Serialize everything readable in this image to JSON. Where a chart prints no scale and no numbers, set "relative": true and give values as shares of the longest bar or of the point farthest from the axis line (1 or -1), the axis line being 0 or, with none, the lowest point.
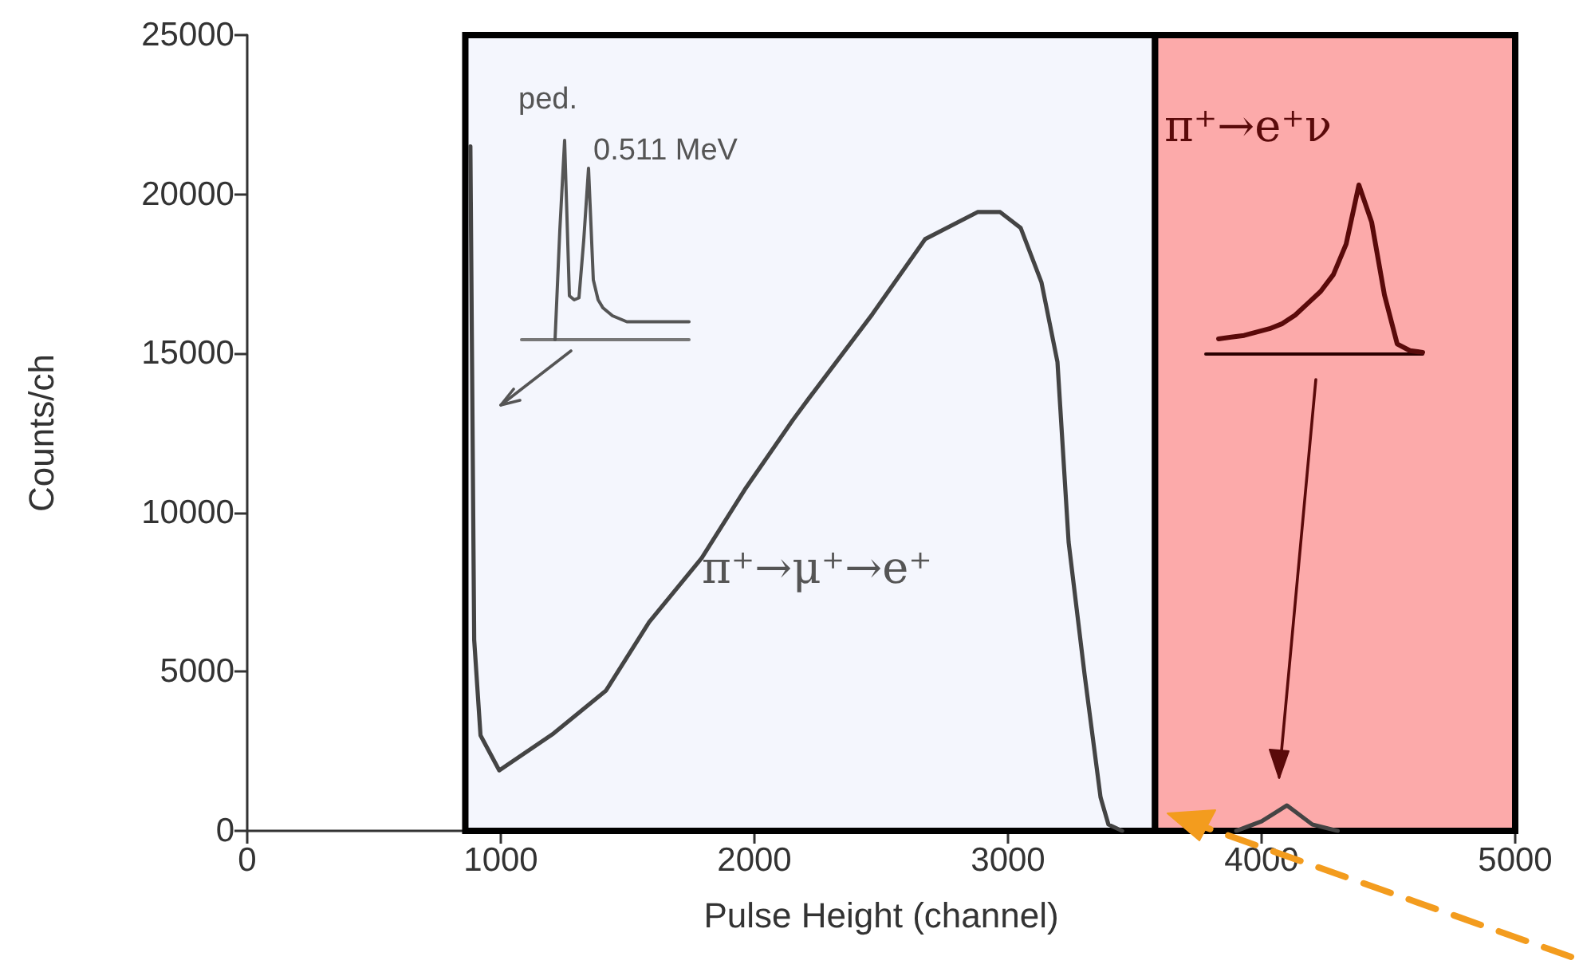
{
  "chart_data": [
    {
      "type": "line",
      "xlabel": "Pulse Height (channel)",
      "ylabel": "Counts/ch",
      "x": [
        880,
        895,
        920,
        994,
        1208,
        1415,
        1585,
        1792,
        1962,
        2151,
        2214,
        2465,
        2673,
        2880,
        2969,
        3050,
        3132,
        3195,
        3239,
        3302,
        3365,
        3396,
        3450,
        3700,
        3900,
        4000,
        4100,
        4200,
        4300
      ],
      "series": [
        {
          "color": "#444444",
          "values": [
            21500,
            6000,
            3000,
            1900,
            3060,
            4410,
            6560,
            8570,
            10720,
            12900,
            13580,
            16230,
            18590,
            19440,
            19440,
            18940,
            17230,
            14730,
            9070,
            4910,
            1050,
            200,
            0,
            null,
            0,
            300,
            800,
            200,
            0
          ]
        }
      ],
      "xlim": [
        0,
        5000
      ],
      "xticks": [
        0,
        1000,
        2000,
        3000,
        4000,
        5000
      ],
      "ylim": [
        0,
        25000
      ],
      "yticks": [
        0,
        5000,
        10000,
        15000,
        20000,
        25000
      ],
      "bands": [
        {
          "axis": "x",
          "from": 860,
          "to": 3580,
          "color": "#f4f6fd"
        },
        {
          "axis": "x",
          "from": 3580,
          "to": 5000,
          "color": "#fcaaaa"
        }
      ],
      "annotations": [
        "π⁺→μ⁺→e⁺"
      ],
      "grid": false,
      "marker": "none",
      "line_style": "solid"
    },
    {
      "type": "line",
      "relative": true,
      "categories": [
        null,
        null,
        null,
        null,
        null,
        null,
        null,
        null,
        null,
        null,
        null,
        null,
        null,
        null,
        null,
        null,
        null,
        null,
        null,
        null,
        null,
        null,
        null,
        null,
        null,
        null,
        null,
        null,
        null,
        null,
        null,
        null,
        null,
        null,
        null,
        null
      ],
      "series": [
        {
          "color": "#555555",
          "values": [
            null,
            null,
            null,
            null,
            null,
            null,
            null,
            0,
            0.55,
            1,
            0.22,
            0.2,
            0.21,
            0.5,
            0.86,
            0.3,
            0.2,
            0.16,
            0.14,
            0.12,
            0.11,
            0.1,
            0.09,
            0.09,
            0.09,
            0.09,
            0.09,
            0.09,
            0.09,
            0.09,
            0.09,
            0.09,
            0.09,
            0.09,
            0.09,
            0.09
          ]
        }
      ],
      "annotations": [
        "ped.",
        "0.511 MeV"
      ],
      "marker": "none",
      "line_style": "solid"
    },
    {
      "type": "line",
      "relative": true,
      "categories": [
        null,
        null,
        null,
        null,
        null,
        null,
        null,
        null,
        null,
        null,
        null,
        null,
        null,
        null,
        null,
        null,
        null,
        null
      ],
      "series": [
        {
          "color": "#5a0a0a",
          "values": [
            null,
            0.09,
            0.1,
            0.11,
            0.13,
            0.15,
            0.18,
            0.23,
            0.3,
            0.37,
            0.47,
            0.65,
            1,
            0.78,
            0.35,
            0.06,
            0.02,
            0.01
          ]
        }
      ],
      "annotations": [
        "π⁺→e⁺ν"
      ],
      "marker": "none",
      "line_style": "solid"
    }
  ]
}
